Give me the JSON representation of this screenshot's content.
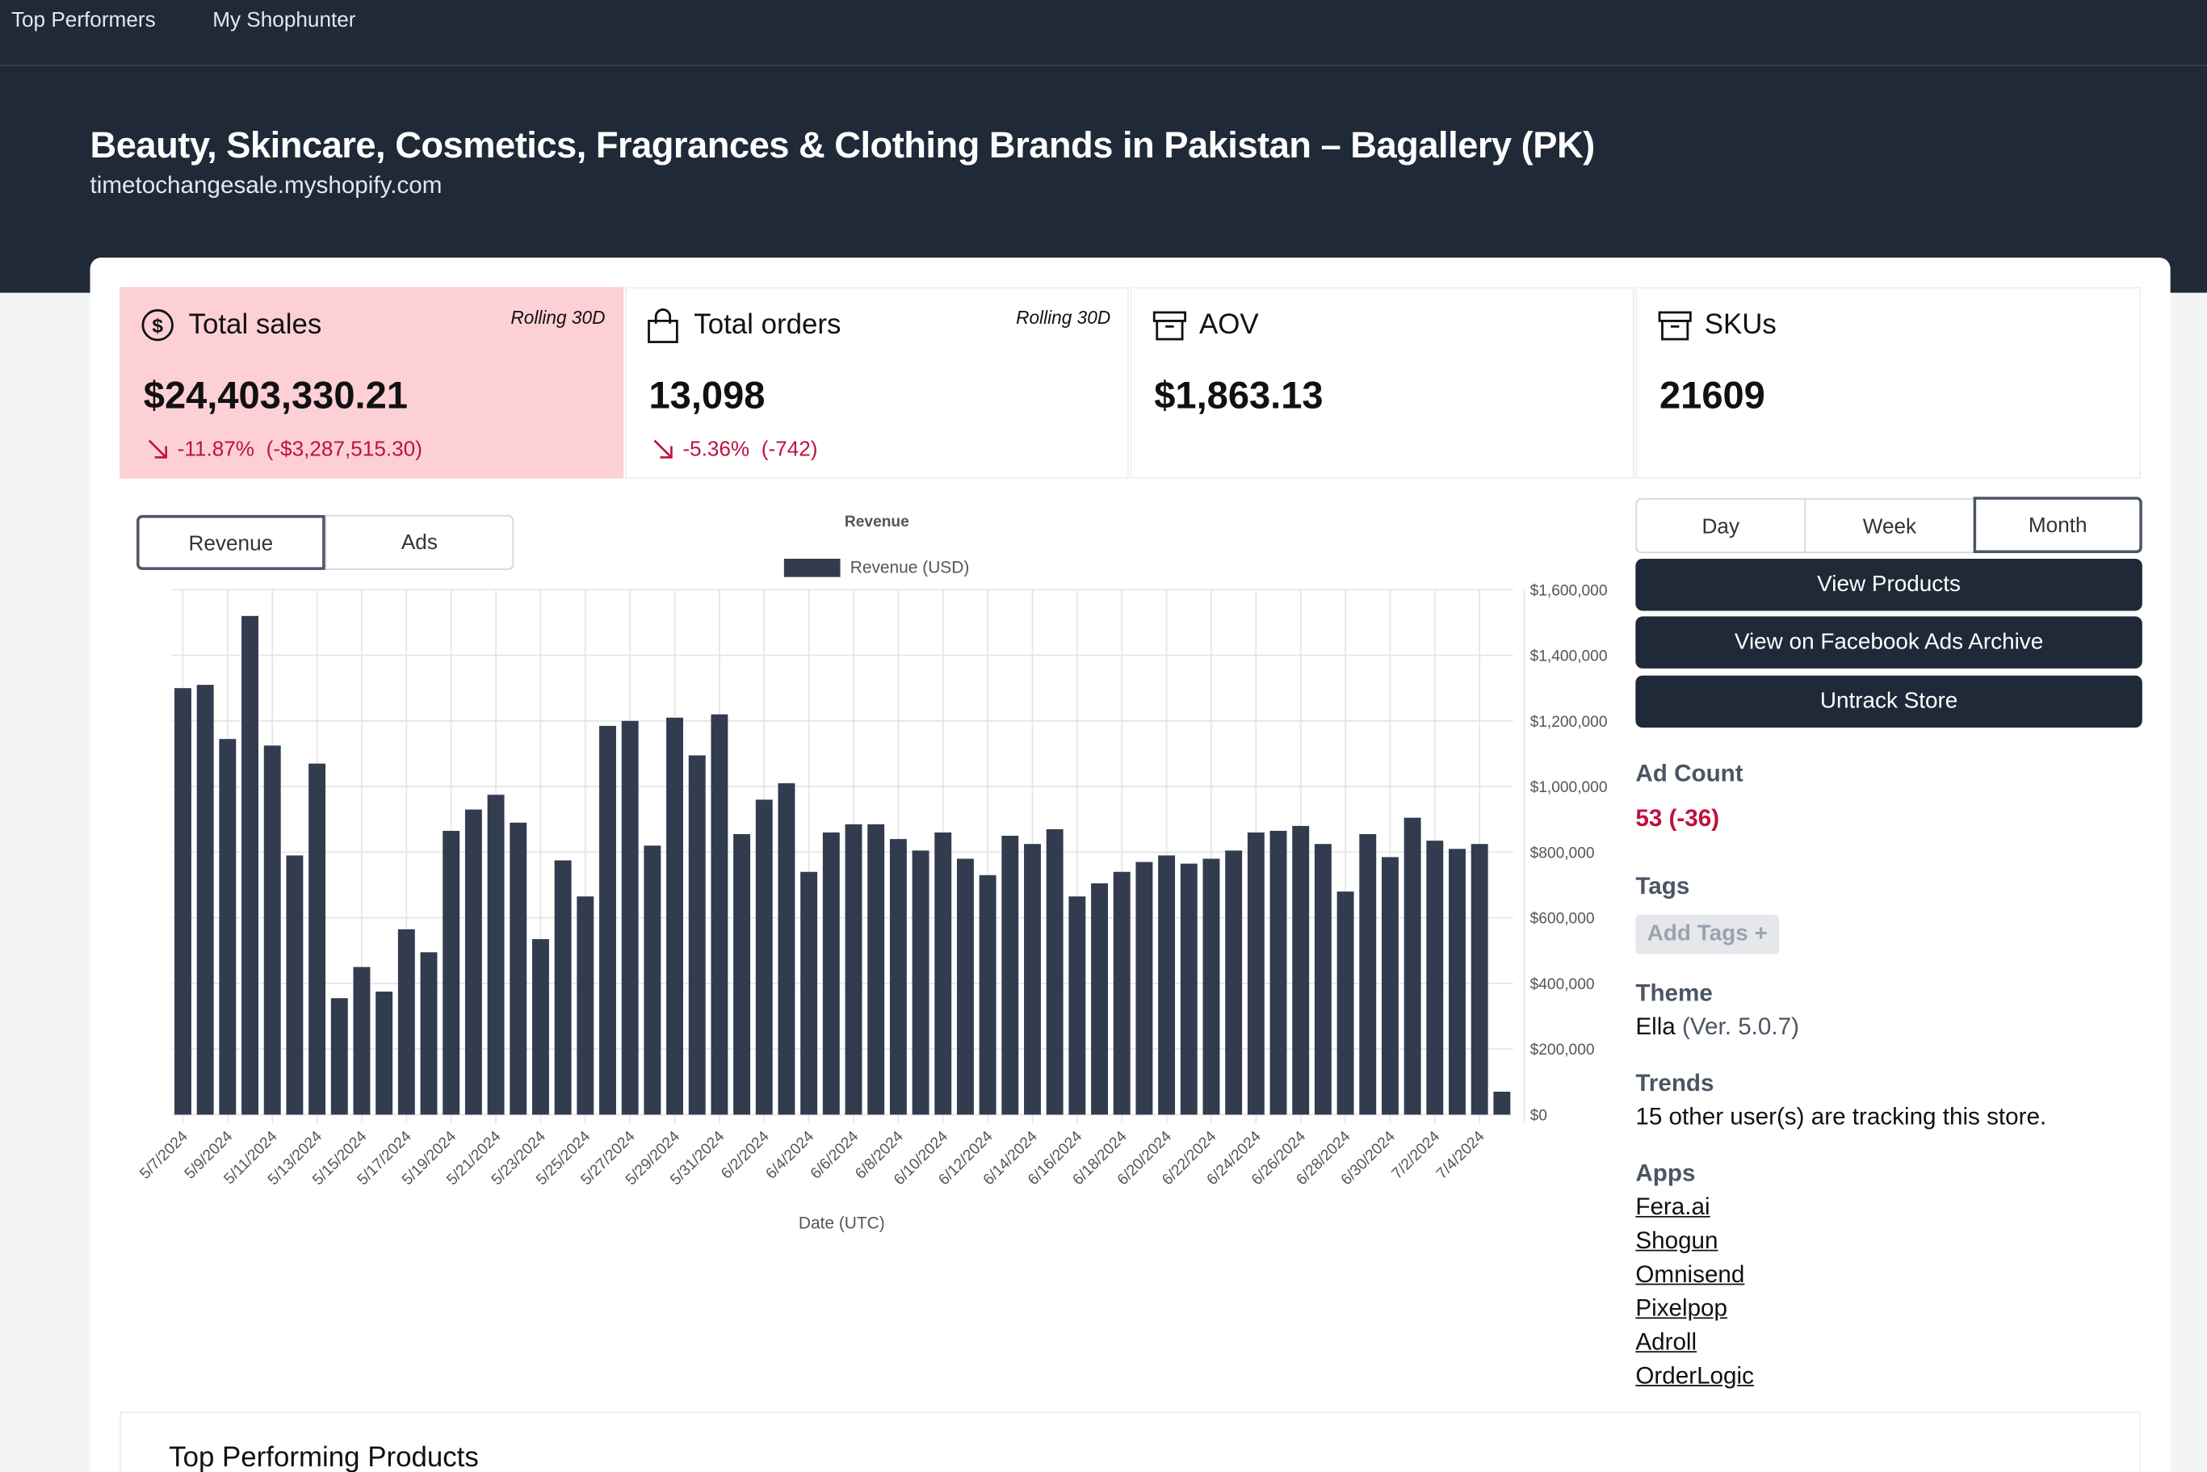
{
  "nav": [
    "Top Performers",
    "My Shophunter"
  ],
  "header": {
    "title": "Beauty, Skincare, Cosmetics, Fragrances & Clothing Brands in Pakistan – Bagallery (PK)",
    "domain": "timetochangesale.myshopify.com"
  },
  "stats": [
    {
      "label": "Total sales",
      "note": "Rolling 30D",
      "value": "$24,403,330.21",
      "change": "-11.87%",
      "delta": "(-$3,287,515.30)"
    },
    {
      "label": "Total orders",
      "note": "Rolling 30D",
      "value": "13,098",
      "change": "-5.36%",
      "delta": "(-742)"
    },
    {
      "label": "AOV",
      "value": "$1,863.13"
    },
    {
      "label": "SKUs",
      "value": "21609"
    }
  ],
  "chart_tabs": [
    "Revenue",
    "Ads"
  ],
  "ranges": [
    "Day",
    "Week",
    "Month"
  ],
  "buttons": [
    "View Products",
    "View on Facebook Ads Archive",
    "Untrack Store"
  ],
  "sidebar": {
    "ad_count_label": "Ad Count",
    "ad_count": "53 (-36)",
    "tags_label": "Tags",
    "add_tags": "Add Tags +",
    "theme_label": "Theme",
    "theme": "Ella",
    "theme_version": "(Ver. 5.0.7)",
    "trends_label": "Trends",
    "trends": "15 other user(s) are tracking this store.",
    "apps_label": "Apps",
    "apps": [
      "Fera.ai",
      "Shogun",
      "Omnisend",
      "Pixelpop",
      "Adroll",
      "OrderLogic"
    ]
  },
  "section_title": "Top Performing Products",
  "chart_data": {
    "type": "bar",
    "title": "Revenue",
    "x_label": "Date (UTC)",
    "categories": [
      "5/7/2024",
      null,
      "5/9/2024",
      null,
      "5/11/2024",
      null,
      "5/13/2024",
      null,
      "5/15/2024",
      null,
      "5/17/2024",
      null,
      "5/19/2024",
      null,
      "5/21/2024",
      null,
      "5/23/2024",
      null,
      "5/25/2024",
      null,
      "5/27/2024",
      null,
      "5/29/2024",
      null,
      "5/31/2024",
      null,
      "6/2/2024",
      null,
      "6/4/2024",
      null,
      "6/6/2024",
      null,
      "6/8/2024",
      null,
      "6/10/2024",
      null,
      "6/12/2024",
      null,
      "6/14/2024",
      null,
      "6/16/2024",
      null,
      "6/18/2024",
      null,
      "6/20/2024",
      null,
      "6/22/2024",
      null,
      "6/24/2024",
      null,
      "6/26/2024",
      null,
      "6/28/2024",
      null,
      "6/30/2024",
      null,
      "7/2/2024",
      null,
      "7/4/2024",
      null
    ],
    "series": [
      {
        "name": "Revenue (USD)",
        "color": "#323c4e",
        "values": [
          1300000,
          1310000,
          1145000,
          1520000,
          1125000,
          790000,
          1070000,
          355000,
          450000,
          375000,
          565000,
          495000,
          865000,
          930000,
          975000,
          890000,
          535000,
          775000,
          665000,
          1185000,
          1200000,
          820000,
          1210000,
          1095000,
          1220000,
          855000,
          960000,
          1010000,
          740000,
          860000,
          885000,
          885000,
          840000,
          805000,
          860000,
          780000,
          730000,
          850000,
          825000,
          870000,
          665000,
          705000,
          740000,
          770000,
          790000,
          765000,
          780000,
          805000,
          860000,
          865000,
          880000,
          825000,
          680000,
          855000,
          785000,
          905000,
          835000,
          810000,
          825000,
          70000
        ]
      }
    ],
    "ylim": [
      0,
      1600000
    ],
    "yticks": [
      {
        "value": 0,
        "label": "$0"
      },
      {
        "value": 200000,
        "label": "$200,000"
      },
      {
        "value": 400000,
        "label": "$400,000"
      },
      {
        "value": 600000,
        "label": "$600,000"
      },
      {
        "value": 800000,
        "label": "$800,000"
      },
      {
        "value": 1000000,
        "label": "$1,000,000"
      },
      {
        "value": 1200000,
        "label": "$1,200,000"
      },
      {
        "value": 1400000,
        "label": "$1,400,000"
      },
      {
        "value": 1600000,
        "label": "$1,600,000"
      }
    ],
    "grid": true
  }
}
